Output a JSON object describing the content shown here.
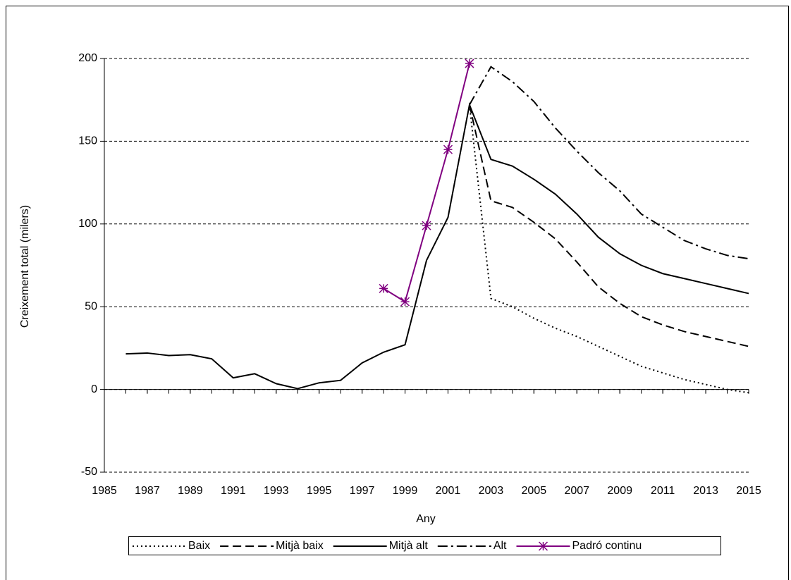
{
  "chart_data": {
    "type": "line",
    "y_label": "Creixement total (milers)",
    "x_label": "Any",
    "x": [
      1986,
      1987,
      1988,
      1989,
      1990,
      1991,
      1992,
      1993,
      1994,
      1995,
      1996,
      1997,
      1998,
      1999,
      2000,
      2001,
      2002,
      2003,
      2004,
      2005,
      2006,
      2007,
      2008,
      2009,
      2010,
      2011,
      2012,
      2013,
      2014,
      2015
    ],
    "series": [
      {
        "name": "Baix",
        "color": "#000000",
        "line_style": "dotted",
        "values": [
          null,
          null,
          null,
          null,
          null,
          null,
          null,
          null,
          null,
          null,
          null,
          null,
          null,
          null,
          null,
          null,
          172,
          55,
          50,
          43,
          37,
          32,
          26,
          20,
          14,
          10,
          6,
          3,
          0,
          -2
        ]
      },
      {
        "name": "Mitjà baix",
        "color": "#000000",
        "line_style": "dashed",
        "values": [
          null,
          null,
          null,
          null,
          null,
          null,
          null,
          null,
          null,
          null,
          null,
          null,
          null,
          null,
          null,
          null,
          172,
          114,
          110,
          101,
          91,
          77,
          62,
          52,
          44,
          39,
          35,
          32,
          29,
          26
        ]
      },
      {
        "name": "Mitjà alt",
        "color": "#000000",
        "line_style": "solid",
        "values": [
          21.5,
          22,
          20.5,
          21,
          18.5,
          7,
          9.5,
          3.5,
          0.5,
          4,
          5.5,
          16,
          22.5,
          27,
          78,
          104,
          172,
          139,
          135,
          127,
          118,
          106,
          92,
          82,
          75,
          70,
          67,
          64,
          61,
          58
        ]
      },
      {
        "name": "Alt",
        "color": "#000000",
        "line_style": "dashdot",
        "values": [
          null,
          null,
          null,
          null,
          null,
          null,
          null,
          null,
          null,
          null,
          null,
          null,
          null,
          null,
          null,
          null,
          172,
          195,
          186,
          174,
          158,
          144,
          131,
          120,
          106,
          98,
          90,
          85,
          81,
          79
        ]
      },
      {
        "name": "Padró continu",
        "color": "#800080",
        "line_style": "solid",
        "marker": "asterisk",
        "values": [
          null,
          null,
          null,
          null,
          null,
          null,
          null,
          null,
          null,
          null,
          null,
          null,
          61,
          53,
          99,
          145,
          197,
          null,
          null,
          null,
          null,
          null,
          null,
          null,
          null,
          null,
          null,
          null,
          null,
          null
        ]
      }
    ],
    "xlim": [
      1985,
      2015
    ],
    "xticks": [
      1985,
      1987,
      1989,
      1991,
      1993,
      1995,
      1997,
      1999,
      2001,
      2003,
      2005,
      2007,
      2009,
      2011,
      2013,
      2015
    ],
    "ylim": [
      -50,
      200
    ],
    "yticks": [
      -50,
      0,
      50,
      100,
      150,
      200
    ],
    "grid": true,
    "legend": "bottom"
  }
}
